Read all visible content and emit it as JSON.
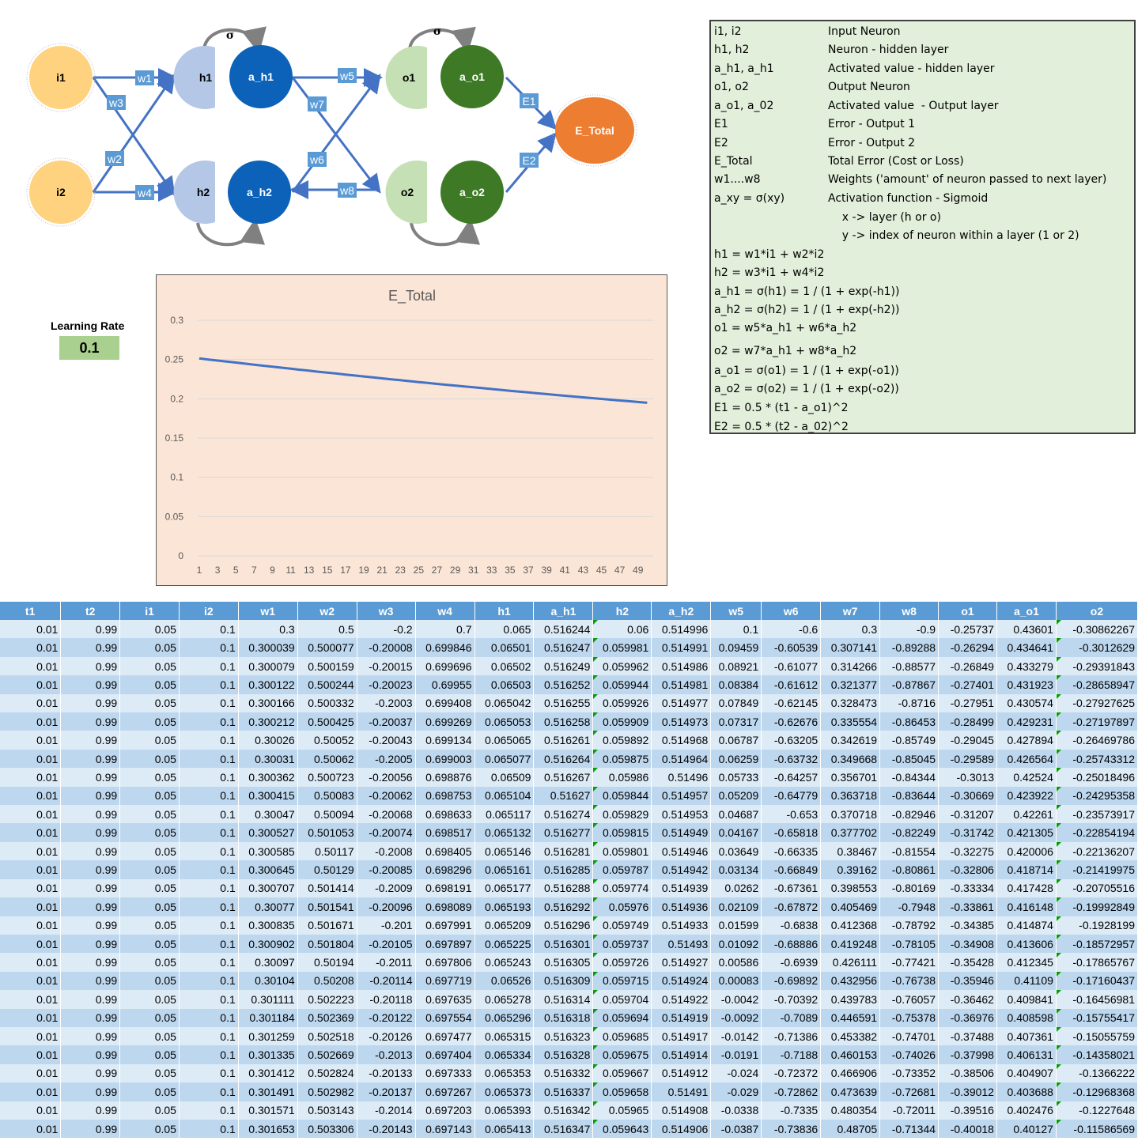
{
  "diagram": {
    "nodes": {
      "i1": "i1",
      "i2": "i2",
      "h1": "h1",
      "h2": "h2",
      "a_h1": "a_h1",
      "a_h2": "a_h2",
      "o1": "o1",
      "o2": "o2",
      "a_o1": "a_o1",
      "a_o2": "a_o2",
      "e_total": "E_Total"
    },
    "weights": {
      "w1": "w1",
      "w2": "w2",
      "w3": "w3",
      "w4": "w4",
      "w5": "w5",
      "w6": "w6",
      "w7": "w7",
      "w8": "w8"
    },
    "errors": {
      "e1": "E1",
      "e2": "E2"
    },
    "sigma": "σ",
    "colors": {
      "input": "#ffd27f",
      "hidden": "#b4c7e7",
      "hidden_act": "#0b62b8",
      "output": "#c5e0b4",
      "output_act": "#3e7a26",
      "total": "#ed7d31",
      "arrow": "#4472c4"
    }
  },
  "legend": {
    "items": [
      {
        "sym": "i1, i2",
        "desc": "Input Neuron"
      },
      {
        "sym": "h1, h2",
        "desc": "Neuron - hidden layer"
      },
      {
        "sym": "a_h1, a_h1",
        "desc": "Activated value - hidden layer"
      },
      {
        "sym": "o1, o2",
        "desc": "Output Neuron"
      },
      {
        "sym": "a_o1, a_02",
        "desc": "Activated value  - Output layer"
      },
      {
        "sym": "E1",
        "desc": "Error - Output 1"
      },
      {
        "sym": "E2",
        "desc": "Error - Output 2"
      },
      {
        "sym": "E_Total",
        "desc": "Total Error (Cost or Loss)"
      },
      {
        "sym": "w1....w8",
        "desc": "Weights ('amount' of neuron passed to next layer)"
      },
      {
        "sym": "a_xy = σ(xy)",
        "desc": "Activation function - Sigmoid"
      },
      {
        "sym": "",
        "desc": "    x -> layer (h or o)"
      },
      {
        "sym": "",
        "desc": "    y -> index of neuron within a layer (1 or 2)"
      }
    ],
    "formulas": [
      "h1 = w1*i1 + w2*i2",
      "h2 = w3*i1 + w4*i2",
      "a_h1 = σ(h1) = 1 / (1 + exp(-h1))",
      "a_h2 = σ(h2) = 1 / (1 + exp(-h2))",
      "o1 = w5*a_h1 + w6*a_h2",
      "o2 = w7*a_h1 + w8*a_h2",
      "a_o1 = σ(o1) = 1 / (1 + exp(-o1))",
      "a_o2 = σ(o2) = 1 / (1 + exp(-o2))",
      "E1 = 0.5 * (t1 - a_o1)^2",
      "E2 = 0.5 * (t2 - a_02)^2"
    ]
  },
  "learning_rate": {
    "label": "Learning Rate",
    "value": "0.1"
  },
  "chart_data": {
    "type": "line",
    "title": "E_Total",
    "x": [
      1,
      2,
      3,
      4,
      5,
      6,
      7,
      8,
      9,
      10,
      11,
      12,
      13,
      14,
      15,
      16,
      17,
      18,
      19,
      20,
      21,
      22,
      23,
      24,
      25,
      26,
      27,
      28,
      29,
      30,
      31,
      32,
      33,
      34,
      35,
      36,
      37,
      38,
      39,
      40,
      41,
      42,
      43,
      44,
      45,
      46,
      47,
      48,
      49,
      50
    ],
    "x_tick_labels": [
      "1",
      "3",
      "5",
      "7",
      "9",
      "11",
      "13",
      "15",
      "17",
      "19",
      "21",
      "23",
      "25",
      "27",
      "29",
      "31",
      "33",
      "35",
      "37",
      "39",
      "41",
      "43",
      "45",
      "47",
      "49"
    ],
    "y_tick_labels": [
      "0",
      "0.05",
      "0.1",
      "0.15",
      "0.2",
      "0.25",
      "0.3"
    ],
    "series": [
      {
        "values": [
          0.2514,
          0.25,
          0.2487,
          0.2474,
          0.2461,
          0.2447,
          0.2434,
          0.2421,
          0.2408,
          0.2396,
          0.2383,
          0.237,
          0.2358,
          0.2345,
          0.2333,
          0.2321,
          0.2308,
          0.2296,
          0.2284,
          0.2272,
          0.226,
          0.2248,
          0.2237,
          0.2225,
          0.2213,
          0.2202,
          0.219,
          0.2179,
          0.2168,
          0.2157,
          0.2146,
          0.2135,
          0.2124,
          0.2113,
          0.2102,
          0.2091,
          0.2081,
          0.207,
          0.206,
          0.2049,
          0.2039,
          0.2029,
          0.2018,
          0.2008,
          0.1998,
          0.1988,
          0.1978,
          0.1969,
          0.1959,
          0.1949
        ],
        "color": "#4472c4"
      }
    ],
    "ylim": [
      0,
      0.3
    ],
    "grid": true
  },
  "table": {
    "headers": [
      "t1",
      "t2",
      "i1",
      "i2",
      "w1",
      "w2",
      "w3",
      "w4",
      "h1",
      "a_h1",
      "h2",
      "a_h2",
      "w5",
      "w6",
      "w7",
      "w8",
      "o1",
      "a_o1",
      "o2"
    ],
    "rows": [
      [
        "0.01",
        "0.99",
        "0.05",
        "0.1",
        "0.3",
        "0.5",
        "-0.2",
        "0.7",
        "0.065",
        "0.516244",
        "0.06",
        "0.514996",
        "0.1",
        "-0.6",
        "0.3",
        "-0.9",
        "-0.25737",
        "0.43601",
        "-0.30862267"
      ],
      [
        "0.01",
        "0.99",
        "0.05",
        "0.1",
        "0.300039",
        "0.500077",
        "-0.20008",
        "0.699846",
        "0.06501",
        "0.516247",
        "0.059981",
        "0.514991",
        "0.09459",
        "-0.60539",
        "0.307141",
        "-0.89288",
        "-0.26294",
        "0.434641",
        "-0.3012629"
      ],
      [
        "0.01",
        "0.99",
        "0.05",
        "0.1",
        "0.300079",
        "0.500159",
        "-0.20015",
        "0.699696",
        "0.06502",
        "0.516249",
        "0.059962",
        "0.514986",
        "0.08921",
        "-0.61077",
        "0.314266",
        "-0.88577",
        "-0.26849",
        "0.433279",
        "-0.29391843"
      ],
      [
        "0.01",
        "0.99",
        "0.05",
        "0.1",
        "0.300122",
        "0.500244",
        "-0.20023",
        "0.69955",
        "0.06503",
        "0.516252",
        "0.059944",
        "0.514981",
        "0.08384",
        "-0.61612",
        "0.321377",
        "-0.87867",
        "-0.27401",
        "0.431923",
        "-0.28658947"
      ],
      [
        "0.01",
        "0.99",
        "0.05",
        "0.1",
        "0.300166",
        "0.500332",
        "-0.2003",
        "0.699408",
        "0.065042",
        "0.516255",
        "0.059926",
        "0.514977",
        "0.07849",
        "-0.62145",
        "0.328473",
        "-0.8716",
        "-0.27951",
        "0.430574",
        "-0.27927625"
      ],
      [
        "0.01",
        "0.99",
        "0.05",
        "0.1",
        "0.300212",
        "0.500425",
        "-0.20037",
        "0.699269",
        "0.065053",
        "0.516258",
        "0.059909",
        "0.514973",
        "0.07317",
        "-0.62676",
        "0.335554",
        "-0.86453",
        "-0.28499",
        "0.429231",
        "-0.27197897"
      ],
      [
        "0.01",
        "0.99",
        "0.05",
        "0.1",
        "0.30026",
        "0.50052",
        "-0.20043",
        "0.699134",
        "0.065065",
        "0.516261",
        "0.059892",
        "0.514968",
        "0.06787",
        "-0.63205",
        "0.342619",
        "-0.85749",
        "-0.29045",
        "0.427894",
        "-0.26469786"
      ],
      [
        "0.01",
        "0.99",
        "0.05",
        "0.1",
        "0.30031",
        "0.50062",
        "-0.2005",
        "0.699003",
        "0.065077",
        "0.516264",
        "0.059875",
        "0.514964",
        "0.06259",
        "-0.63732",
        "0.349668",
        "-0.85045",
        "-0.29589",
        "0.426564",
        "-0.25743312"
      ],
      [
        "0.01",
        "0.99",
        "0.05",
        "0.1",
        "0.300362",
        "0.500723",
        "-0.20056",
        "0.698876",
        "0.06509",
        "0.516267",
        "0.05986",
        "0.51496",
        "0.05733",
        "-0.64257",
        "0.356701",
        "-0.84344",
        "-0.3013",
        "0.42524",
        "-0.25018496"
      ],
      [
        "0.01",
        "0.99",
        "0.05",
        "0.1",
        "0.300415",
        "0.50083",
        "-0.20062",
        "0.698753",
        "0.065104",
        "0.51627",
        "0.059844",
        "0.514957",
        "0.05209",
        "-0.64779",
        "0.363718",
        "-0.83644",
        "-0.30669",
        "0.423922",
        "-0.24295358"
      ],
      [
        "0.01",
        "0.99",
        "0.05",
        "0.1",
        "0.30047",
        "0.50094",
        "-0.20068",
        "0.698633",
        "0.065117",
        "0.516274",
        "0.059829",
        "0.514953",
        "0.04687",
        "-0.653",
        "0.370718",
        "-0.82946",
        "-0.31207",
        "0.42261",
        "-0.23573917"
      ],
      [
        "0.01",
        "0.99",
        "0.05",
        "0.1",
        "0.300527",
        "0.501053",
        "-0.20074",
        "0.698517",
        "0.065132",
        "0.516277",
        "0.059815",
        "0.514949",
        "0.04167",
        "-0.65818",
        "0.377702",
        "-0.82249",
        "-0.31742",
        "0.421305",
        "-0.22854194"
      ],
      [
        "0.01",
        "0.99",
        "0.05",
        "0.1",
        "0.300585",
        "0.50117",
        "-0.2008",
        "0.698405",
        "0.065146",
        "0.516281",
        "0.059801",
        "0.514946",
        "0.03649",
        "-0.66335",
        "0.38467",
        "-0.81554",
        "-0.32275",
        "0.420006",
        "-0.22136207"
      ],
      [
        "0.01",
        "0.99",
        "0.05",
        "0.1",
        "0.300645",
        "0.50129",
        "-0.20085",
        "0.698296",
        "0.065161",
        "0.516285",
        "0.059787",
        "0.514942",
        "0.03134",
        "-0.66849",
        "0.39162",
        "-0.80861",
        "-0.32806",
        "0.418714",
        "-0.21419975"
      ],
      [
        "0.01",
        "0.99",
        "0.05",
        "0.1",
        "0.300707",
        "0.501414",
        "-0.2009",
        "0.698191",
        "0.065177",
        "0.516288",
        "0.059774",
        "0.514939",
        "0.0262",
        "-0.67361",
        "0.398553",
        "-0.80169",
        "-0.33334",
        "0.417428",
        "-0.20705516"
      ],
      [
        "0.01",
        "0.99",
        "0.05",
        "0.1",
        "0.30077",
        "0.501541",
        "-0.20096",
        "0.698089",
        "0.065193",
        "0.516292",
        "0.05976",
        "0.514936",
        "0.02109",
        "-0.67872",
        "0.405469",
        "-0.7948",
        "-0.33861",
        "0.416148",
        "-0.19992849"
      ],
      [
        "0.01",
        "0.99",
        "0.05",
        "0.1",
        "0.300835",
        "0.501671",
        "-0.201",
        "0.697991",
        "0.065209",
        "0.516296",
        "0.059749",
        "0.514933",
        "0.01599",
        "-0.6838",
        "0.412368",
        "-0.78792",
        "-0.34385",
        "0.414874",
        "-0.1928199"
      ],
      [
        "0.01",
        "0.99",
        "0.05",
        "0.1",
        "0.300902",
        "0.501804",
        "-0.20105",
        "0.697897",
        "0.065225",
        "0.516301",
        "0.059737",
        "0.51493",
        "0.01092",
        "-0.68886",
        "0.419248",
        "-0.78105",
        "-0.34908",
        "0.413606",
        "-0.18572957"
      ],
      [
        "0.01",
        "0.99",
        "0.05",
        "0.1",
        "0.30097",
        "0.50194",
        "-0.2011",
        "0.697806",
        "0.065243",
        "0.516305",
        "0.059726",
        "0.514927",
        "0.00586",
        "-0.6939",
        "0.426111",
        "-0.77421",
        "-0.35428",
        "0.412345",
        "-0.17865767"
      ],
      [
        "0.01",
        "0.99",
        "0.05",
        "0.1",
        "0.30104",
        "0.50208",
        "-0.20114",
        "0.697719",
        "0.06526",
        "0.516309",
        "0.059715",
        "0.514924",
        "0.00083",
        "-0.69892",
        "0.432956",
        "-0.76738",
        "-0.35946",
        "0.41109",
        "-0.17160437"
      ],
      [
        "0.01",
        "0.99",
        "0.05",
        "0.1",
        "0.301111",
        "0.502223",
        "-0.20118",
        "0.697635",
        "0.065278",
        "0.516314",
        "0.059704",
        "0.514922",
        "-0.0042",
        "-0.70392",
        "0.439783",
        "-0.76057",
        "-0.36462",
        "0.409841",
        "-0.16456981"
      ],
      [
        "0.01",
        "0.99",
        "0.05",
        "0.1",
        "0.301184",
        "0.502369",
        "-0.20122",
        "0.697554",
        "0.065296",
        "0.516318",
        "0.059694",
        "0.514919",
        "-0.0092",
        "-0.7089",
        "0.446591",
        "-0.75378",
        "-0.36976",
        "0.408598",
        "-0.15755417"
      ],
      [
        "0.01",
        "0.99",
        "0.05",
        "0.1",
        "0.301259",
        "0.502518",
        "-0.20126",
        "0.697477",
        "0.065315",
        "0.516323",
        "0.059685",
        "0.514917",
        "-0.0142",
        "-0.71386",
        "0.453382",
        "-0.74701",
        "-0.37488",
        "0.407361",
        "-0.15055759"
      ],
      [
        "0.01",
        "0.99",
        "0.05",
        "0.1",
        "0.301335",
        "0.502669",
        "-0.2013",
        "0.697404",
        "0.065334",
        "0.516328",
        "0.059675",
        "0.514914",
        "-0.0191",
        "-0.7188",
        "0.460153",
        "-0.74026",
        "-0.37998",
        "0.406131",
        "-0.14358021"
      ],
      [
        "0.01",
        "0.99",
        "0.05",
        "0.1",
        "0.301412",
        "0.502824",
        "-0.20133",
        "0.697333",
        "0.065353",
        "0.516332",
        "0.059667",
        "0.514912",
        "-0.024",
        "-0.72372",
        "0.466906",
        "-0.73352",
        "-0.38506",
        "0.404907",
        "-0.1366222"
      ],
      [
        "0.01",
        "0.99",
        "0.05",
        "0.1",
        "0.301491",
        "0.502982",
        "-0.20137",
        "0.697267",
        "0.065373",
        "0.516337",
        "0.059658",
        "0.51491",
        "-0.029",
        "-0.72862",
        "0.473639",
        "-0.72681",
        "-0.39012",
        "0.403688",
        "-0.12968368"
      ],
      [
        "0.01",
        "0.99",
        "0.05",
        "0.1",
        "0.301571",
        "0.503143",
        "-0.2014",
        "0.697203",
        "0.065393",
        "0.516342",
        "0.05965",
        "0.514908",
        "-0.0338",
        "-0.7335",
        "0.480354",
        "-0.72011",
        "-0.39516",
        "0.402476",
        "-0.1227648"
      ],
      [
        "0.01",
        "0.99",
        "0.05",
        "0.1",
        "0.301653",
        "0.503306",
        "-0.20143",
        "0.697143",
        "0.065413",
        "0.516347",
        "0.059643",
        "0.514906",
        "-0.0387",
        "-0.73836",
        "0.48705",
        "-0.71344",
        "-0.40018",
        "0.40127",
        "-0.11586569"
      ]
    ]
  }
}
